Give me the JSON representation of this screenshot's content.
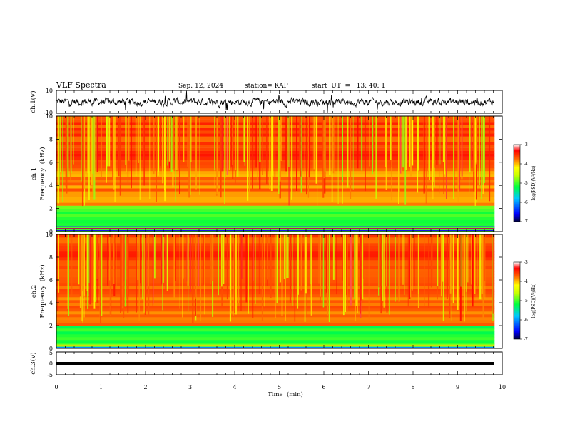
{
  "header": {
    "title": "VLF Spectra",
    "date": "Sep. 12, 2024",
    "station": "station= KAP",
    "start": "start  UT  =   13: 40: 1"
  },
  "chart_data": [
    {
      "type": "line",
      "panel": "ch1-waveform",
      "ylabel": "ch.1(V)",
      "ylim": [
        -10,
        10
      ],
      "yticks": [
        "10",
        "-10"
      ],
      "x_unit": "min",
      "xlim": [
        0,
        10
      ],
      "data_end_min": 9.82,
      "series": [
        {
          "values": "noisy waveform around 0 V, amplitude up to about ±10 V"
        }
      ]
    },
    {
      "type": "heatmap",
      "panel": "ch1-spectrogram",
      "ylabel": "ch.1\nFrequency  (kHz)",
      "ylim": [
        0,
        10
      ],
      "yticks": [
        "0",
        "2",
        "4",
        "6",
        "8",
        "10"
      ],
      "xlim": [
        0,
        10
      ],
      "data_end_min": 9.82,
      "colorbar": {
        "label": "log(PSD)(V²/Hz)",
        "ticks": [
          "-3",
          "-4",
          "-5",
          "-6",
          "-7"
        ],
        "range": [
          -7,
          -3
        ]
      },
      "bands": [
        {
          "f_min": 0.0,
          "f_max": 0.5,
          "level": "mixed -3 to -7 (lines)"
        },
        {
          "f_min": 0.5,
          "f_max": 2.2,
          "level": -5.0
        },
        {
          "f_min": 2.2,
          "f_max": 5.5,
          "level": -3.8
        },
        {
          "f_min": 5.5,
          "f_max": 10.0,
          "level": -3.6
        }
      ]
    },
    {
      "type": "heatmap",
      "panel": "ch2-spectrogram",
      "ylabel": "ch.2\nFrequency  (kHz)",
      "ylim": [
        0,
        10
      ],
      "yticks": [
        "0",
        "2",
        "4",
        "6",
        "8",
        "10"
      ],
      "xlim": [
        0,
        10
      ],
      "data_end_min": 9.82,
      "colorbar": {
        "label": "log(PSD)(V²/Hz)",
        "ticks": [
          "-3",
          "-4",
          "-5",
          "-6",
          "-7"
        ],
        "range": [
          -7,
          -3
        ]
      },
      "bands": [
        {
          "f_min": 0.0,
          "f_max": 0.5,
          "level": "mixed -3 to -7 (lines)"
        },
        {
          "f_min": 0.5,
          "f_max": 2.0,
          "level": -5.2
        },
        {
          "f_min": 2.0,
          "f_max": 5.0,
          "level": -3.8
        },
        {
          "f_min": 5.0,
          "f_max": 10.0,
          "level": -3.6
        }
      ]
    },
    {
      "type": "line",
      "panel": "ch3-waveform",
      "ylabel": "ch.3(V)",
      "ylim": [
        -5,
        5
      ],
      "yticks": [
        "5",
        "0",
        "-5"
      ],
      "xlabel": "Time  (min)",
      "xticks": [
        "0",
        "1",
        "2",
        "3",
        "4",
        "5",
        "6",
        "7",
        "8",
        "9",
        "10"
      ],
      "xlim": [
        0,
        10
      ],
      "data_end_min": 9.82,
      "series": [
        {
          "values": "nearly constant about 0 V"
        }
      ]
    }
  ]
}
